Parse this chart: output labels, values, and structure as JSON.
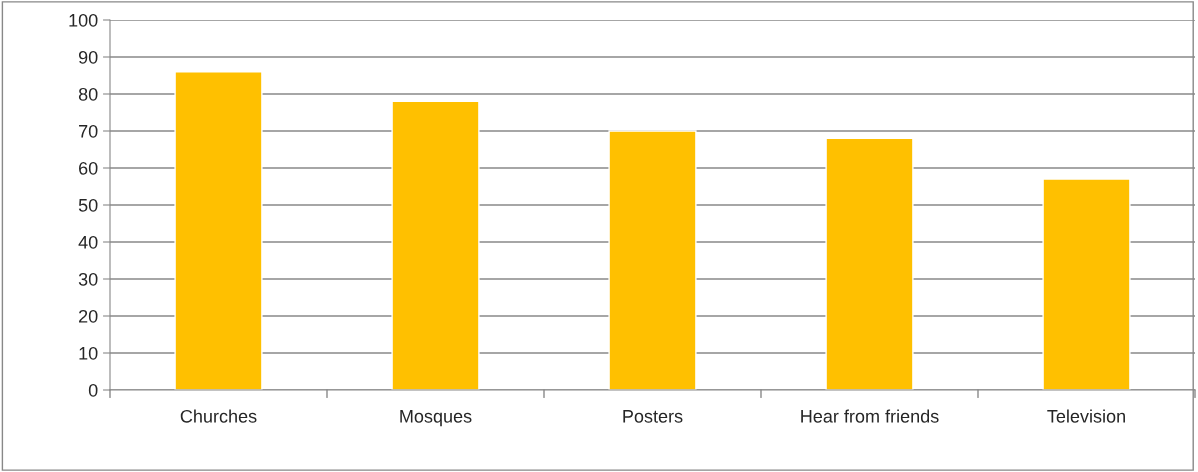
{
  "chart_data": {
    "type": "bar",
    "categories": [
      "Churches",
      "Mosques",
      "Posters",
      "Hear from friends",
      "Television"
    ],
    "values": [
      86,
      78,
      70,
      68,
      57
    ],
    "color": "#ffc000",
    "ylim": [
      0,
      100
    ],
    "yticks": [
      0,
      10,
      20,
      30,
      40,
      50,
      60,
      70,
      80,
      90,
      100
    ],
    "grid": "y",
    "legend": false
  }
}
